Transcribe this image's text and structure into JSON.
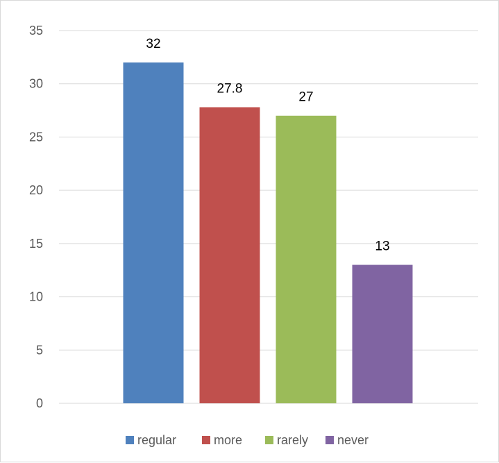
{
  "chart_data": {
    "type": "bar",
    "categories": [
      "regular",
      "more",
      "rarely",
      "never"
    ],
    "values": [
      32,
      27.8,
      27,
      13
    ],
    "data_labels": [
      "32",
      "27.8",
      "27",
      "13"
    ],
    "colors": [
      "#4f81bd",
      "#c0504d",
      "#9bbb59",
      "#8064a2"
    ],
    "ylim": [
      0,
      35
    ],
    "y_ticks": [
      0,
      5,
      10,
      15,
      20,
      25,
      30,
      35
    ],
    "y_tick_labels": [
      "0",
      "5",
      "10",
      "15",
      "20",
      "25",
      "30",
      "35"
    ],
    "legend": [
      "regular",
      "more",
      "rarely",
      "never"
    ],
    "legend_position": "bottom",
    "grid": true,
    "title": "",
    "xlabel": "",
    "ylabel": ""
  }
}
